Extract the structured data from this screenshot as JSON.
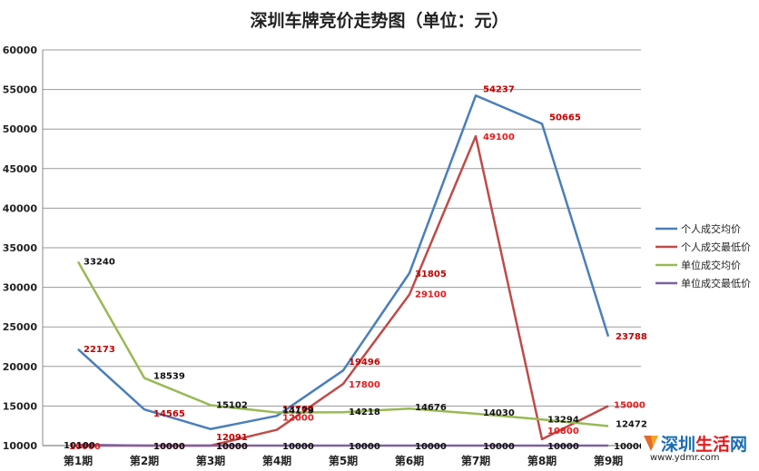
{
  "chart_data": {
    "type": "line",
    "title": "深圳车牌竞价走势图（单位：元）",
    "categories": [
      "第1期",
      "第2期",
      "第3期",
      "第4期",
      "第5期",
      "第6期",
      "第7期",
      "第8期",
      "第9期"
    ],
    "ylim": [
      10000,
      60000
    ],
    "yticks": [
      "10000",
      "15000",
      "20000",
      "25000",
      "30000",
      "35000",
      "40000",
      "45000",
      "50000",
      "55000",
      "60000"
    ],
    "grid": true,
    "legend_position": "right",
    "series": [
      {
        "name": "个人成交均价",
        "color": "#4a7ebb",
        "label_color": "#c00000",
        "values": [
          22173,
          14565,
          12091,
          13762,
          19496,
          31805,
          54237,
          50665,
          23788
        ]
      },
      {
        "name": "个人成交最低价",
        "color": "#be4b48",
        "label_color": "#e41a1c",
        "values": [
          10000,
          10000,
          10000,
          12000,
          17800,
          29100,
          49100,
          10800,
          15000
        ]
      },
      {
        "name": "单位成交均价",
        "color": "#98b954",
        "label_color": "#111111",
        "values": [
          33240,
          18539,
          15102,
          14179,
          14218,
          14676,
          14030,
          13294,
          12472
        ]
      },
      {
        "name": "单位成交最低价",
        "color": "#7d60a0",
        "label_color": "#111111",
        "values": [
          10100,
          10000,
          10000,
          10000,
          10000,
          10000,
          10000,
          10000,
          10000
        ]
      }
    ]
  },
  "watermark": {
    "brand": "深圳生活网",
    "brand_parts": [
      "深圳",
      "生活",
      "网"
    ],
    "url": "www.ydmr.com",
    "logo": "ydmr-logo-icon"
  }
}
